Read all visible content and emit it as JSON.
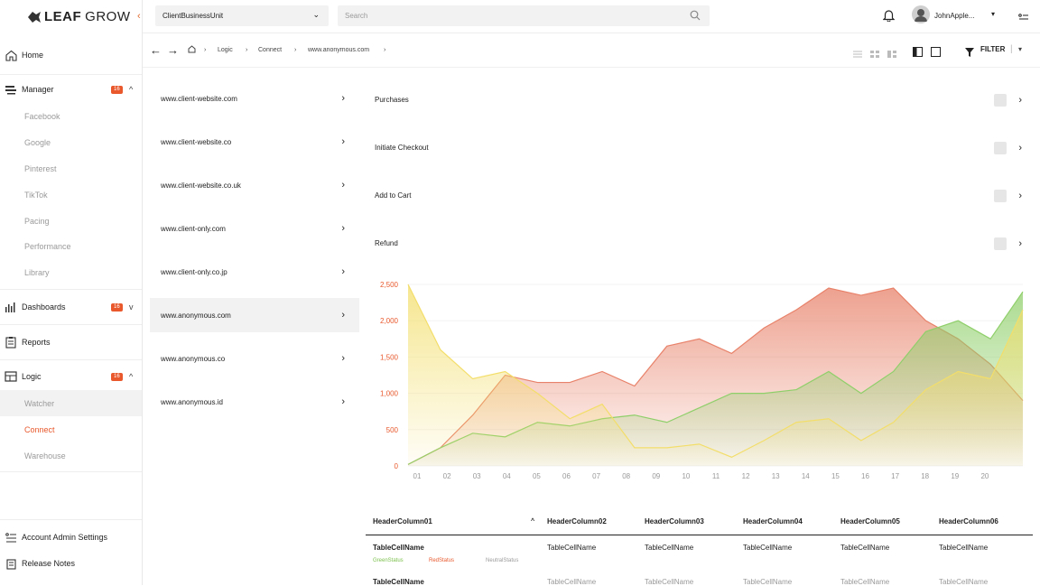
{
  "app": {
    "logo_bold": "LEAF",
    "logo_light": "GROW"
  },
  "sidebar": {
    "home": "Home",
    "manager": {
      "label": "Manager",
      "badge": "16",
      "items": [
        "Facebook",
        "Google",
        "Pinterest",
        "TikTok",
        "Pacing",
        "Performance",
        "Library"
      ]
    },
    "dashboards": {
      "label": "Dashboards",
      "badge": "16"
    },
    "reports": "Reports",
    "logic": {
      "label": "Logic",
      "badge": "16",
      "items": [
        "Watcher",
        "Connect",
        "Warehouse"
      ]
    },
    "account": "Account Admin Settings",
    "release": "Release Notes"
  },
  "topbar": {
    "unit_select": "ClientBusinessUnit",
    "search_placeholder": "Search",
    "user_name": "JohnApple..."
  },
  "breadcrumb": [
    "Logic",
    "Connect",
    "www.anonymous.com"
  ],
  "toolbar": {
    "filter": "FILTER"
  },
  "domains": [
    "www.client-website.com",
    "www.client-website.co",
    "www.client-website.co.uk",
    "www.client-only.com",
    "www.client-only.co.jp",
    "www.anonymous.com",
    "www.anonymous.co",
    "www.anonymous.id"
  ],
  "events": [
    "Purchases",
    "Initiate Checkout",
    "Add to Cart",
    "Refund"
  ],
  "chart_data": {
    "type": "area",
    "x": [
      "01",
      "02",
      "03",
      "04",
      "05",
      "06",
      "07",
      "08",
      "09",
      "10",
      "11",
      "12",
      "13",
      "14",
      "15",
      "16",
      "17",
      "18",
      "19",
      "20"
    ],
    "ylim": [
      0,
      2500
    ],
    "yticks": [
      "2,500",
      "2,000",
      "1,500",
      "1,000",
      "500",
      "0"
    ],
    "series": [
      {
        "color": "#e8826a",
        "values": [
          20,
          250,
          700,
          1250,
          1150,
          1150,
          1300,
          1100,
          1650,
          1750,
          1550,
          1900,
          2150,
          2450,
          2350,
          2450,
          2000,
          1750,
          1400,
          900
        ]
      },
      {
        "color": "#8fcf6a",
        "values": [
          20,
          250,
          450,
          400,
          600,
          550,
          650,
          700,
          600,
          800,
          1000,
          1000,
          1050,
          1300,
          1000,
          1300,
          1850,
          2000,
          1750,
          2400
        ]
      },
      {
        "color": "#f3de6a",
        "values": [
          2500,
          1600,
          1200,
          1300,
          1000,
          650,
          850,
          250,
          250,
          300,
          120,
          350,
          600,
          650,
          350,
          600,
          1050,
          1300,
          1200,
          2150
        ]
      }
    ],
    "colors": {
      "accent": "#e8582c",
      "green": "#7bc04c",
      "red": "#e8582c"
    }
  },
  "table": {
    "headers": [
      "HeaderColumn01",
      "HeaderColumn02",
      "HeaderColumn03",
      "HeaderColumn04",
      "HeaderColumn05",
      "HeaderColumn06"
    ],
    "row1": [
      "TableCellName",
      "TableCellName",
      "TableCellName",
      "TableCellName",
      "TableCellName",
      "TableCellName"
    ],
    "statuses": [
      "GreenStatus",
      "RedStatus",
      "NeutralStatus"
    ]
  }
}
